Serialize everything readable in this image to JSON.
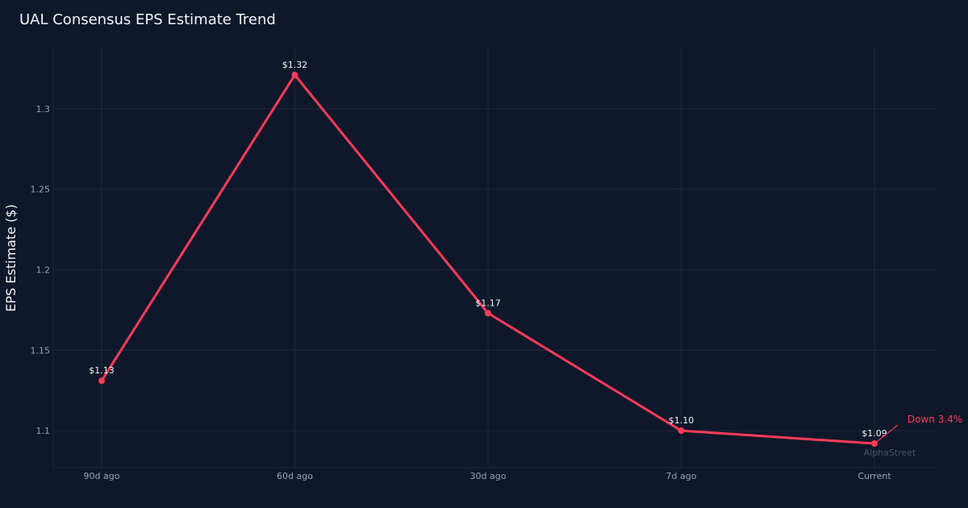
{
  "chart_data": {
    "type": "line",
    "title": "UAL Consensus EPS Estimate Trend",
    "xlabel": "",
    "ylabel": "EPS Estimate ($)",
    "categories": [
      "90d ago",
      "60d ago",
      "30d ago",
      "7d ago",
      "Current"
    ],
    "values": [
      1.131,
      1.321,
      1.173,
      1.1,
      1.092
    ],
    "data_labels": [
      "$1.13",
      "$1.32",
      "$1.17",
      "$1.10",
      "$1.09"
    ],
    "ylim": [
      1.077,
      1.3375
    ],
    "y_ticks": [
      1.1,
      1.15,
      1.2,
      1.25,
      1.3
    ],
    "y_tick_labels": [
      "1.1",
      "1.15",
      "1.2",
      "1.25",
      "1.3"
    ],
    "grid": true,
    "legend": "none",
    "annotation": {
      "text": "Down 3.4%",
      "target": "Current",
      "color": "#ff3d5a"
    },
    "watermark": "AlphaStreet",
    "colors": {
      "background": "#0f172a",
      "line": "#ff3d5a",
      "grid": "#1e293b",
      "tick_text": "#94a3b8",
      "title_text": "#f1f5f9",
      "watermark_text": "#475569"
    }
  }
}
